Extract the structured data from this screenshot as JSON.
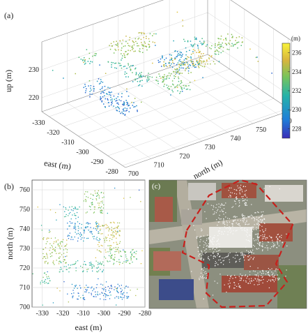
{
  "panels": {
    "a": "(a)",
    "b": "(b)",
    "c": "(c)"
  },
  "chart_data": [
    {
      "type": "scatter",
      "panel": "(a)",
      "projection": "3d",
      "xlabel": "east (m)",
      "ylabel": "north (m)",
      "zlabel": "up (m)",
      "xlim": [
        -335,
        -278
      ],
      "ylim": [
        700,
        765
      ],
      "zlim": [
        215,
        240
      ],
      "xticks": [
        "-330",
        "-320",
        "-310",
        "-300",
        "-290",
        "-280"
      ],
      "yticks": [
        "700",
        "710",
        "720",
        "730",
        "740",
        "750",
        "760"
      ],
      "zticks": [
        "220",
        "230"
      ],
      "grid": true,
      "colorbar": {
        "unit": "(m)",
        "ticks": [
          "236",
          "234",
          "232",
          "230",
          "228"
        ],
        "range": [
          227,
          237
        ],
        "colors": [
          "#3a2db8",
          "#1f7fd8",
          "#27b3a8",
          "#79c45a",
          "#d8b53e",
          "#f8f23a"
        ]
      }
    },
    {
      "type": "scatter",
      "panel": "(b)",
      "xlabel": "east (m)",
      "ylabel": "north (m)",
      "xlim": [
        -335,
        -280
      ],
      "ylim": [
        700,
        765
      ],
      "xticks": [
        "-330",
        "-320",
        "-310",
        "-300",
        "-290",
        "-280"
      ],
      "yticks": [
        "700",
        "710",
        "720",
        "730",
        "740",
        "750",
        "760"
      ],
      "grid": true
    },
    {
      "type": "image",
      "panel": "(c)",
      "description_label": ""
    }
  ]
}
